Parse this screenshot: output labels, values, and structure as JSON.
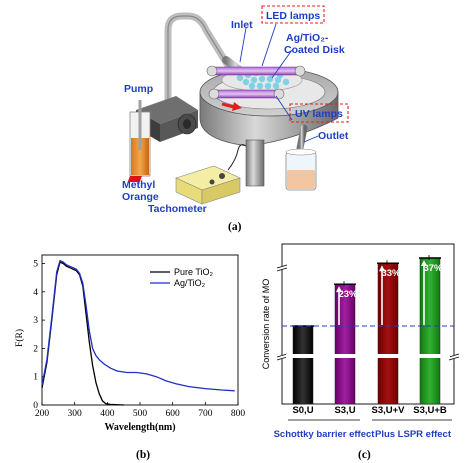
{
  "panel_a": {
    "labels": {
      "inlet": "Inlet",
      "led_lamps": "LED lamps",
      "disk": "Ag/TiO₂-\nCoated Disk",
      "disk_line1": "Ag/TiO₂-",
      "disk_line2": "Coated Disk",
      "pump": "Pump",
      "uv_lamps": "UV lamps",
      "outlet": "Outlet",
      "methyl_line1": "Methyl",
      "methyl_line2": "Orange",
      "tachometer": "Tachometer"
    },
    "caption": "(a)"
  },
  "panel_b": {
    "caption": "(b)",
    "chart_data": {
      "type": "line",
      "xlabel": "Wavelength(nm)",
      "ylabel": "F(R)",
      "xlim": [
        200,
        800
      ],
      "ylim": [
        0,
        5.3
      ],
      "x_ticks": [
        "200",
        "300",
        "400",
        "500",
        "600",
        "700",
        "800"
      ],
      "y_ticks": [
        "0",
        "1",
        "2",
        "3",
        "4",
        "5"
      ],
      "legend": "top-right",
      "series": [
        {
          "name": "Pure TiO₂",
          "color": "#000000",
          "points": [
            [
              200,
              0.6
            ],
            [
              215,
              1.5
            ],
            [
              230,
              3.0
            ],
            [
              245,
              4.6
            ],
            [
              255,
              5.05
            ],
            [
              265,
              5.0
            ],
            [
              275,
              4.9
            ],
            [
              285,
              4.85
            ],
            [
              295,
              4.8
            ],
            [
              305,
              4.75
            ],
            [
              315,
              4.6
            ],
            [
              325,
              4.2
            ],
            [
              335,
              3.2
            ],
            [
              345,
              2.2
            ],
            [
              355,
              1.4
            ],
            [
              365,
              0.8
            ],
            [
              375,
              0.4
            ],
            [
              385,
              0.15
            ],
            [
              395,
              0.05
            ],
            [
              410,
              0.02
            ],
            [
              450,
              0.0
            ]
          ]
        },
        {
          "name": "Ag/TiO₂",
          "color": "#1f2fbf",
          "points": [
            [
              200,
              0.7
            ],
            [
              215,
              1.6
            ],
            [
              230,
              3.1
            ],
            [
              245,
              4.7
            ],
            [
              255,
              5.1
            ],
            [
              265,
              5.05
            ],
            [
              275,
              4.95
            ],
            [
              285,
              4.9
            ],
            [
              295,
              4.85
            ],
            [
              305,
              4.8
            ],
            [
              315,
              4.65
            ],
            [
              325,
              4.3
            ],
            [
              335,
              3.5
            ],
            [
              345,
              2.6
            ],
            [
              355,
              2.0
            ],
            [
              365,
              1.75
            ],
            [
              375,
              1.6
            ],
            [
              390,
              1.45
            ],
            [
              410,
              1.3
            ],
            [
              430,
              1.2
            ],
            [
              460,
              1.15
            ],
            [
              490,
              1.15
            ],
            [
              520,
              1.1
            ],
            [
              550,
              1.0
            ],
            [
              580,
              0.85
            ],
            [
              610,
              0.75
            ],
            [
              650,
              0.65
            ],
            [
              700,
              0.58
            ],
            [
              750,
              0.53
            ],
            [
              790,
              0.5
            ]
          ]
        }
      ]
    }
  },
  "panel_c": {
    "caption": "(c)",
    "groups": {
      "schottky": "Schottky barrier effect",
      "lspr": "Plus LSPR effect"
    },
    "chart_data": {
      "type": "bar",
      "ylabel": "Conversion rate of MO",
      "categories": [
        "S0,U",
        "S3,U",
        "S3,U+V",
        "S3,U+B"
      ],
      "values": [
        35,
        43,
        47,
        48
      ],
      "colors": [
        "#000000",
        "#800080",
        "#8b0000",
        "#1a8c1a"
      ],
      "increase_labels": [
        "",
        "23%",
        "33%",
        "37%"
      ],
      "baseline_value": 35,
      "axis_break": true
    }
  }
}
